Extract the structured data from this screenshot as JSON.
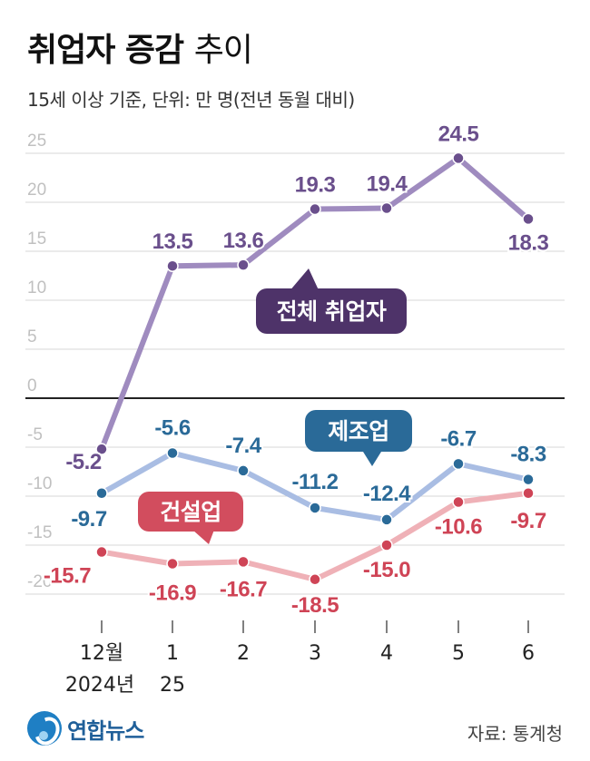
{
  "header": {
    "title_bold": "취업자 증감",
    "title_light": "추이",
    "subtitle": "15세 이상 기준, 단위: 만 명(전년 동월 대비)"
  },
  "footer": {
    "logo_text": "연합뉴스",
    "source": "자료: 통계청"
  },
  "colors": {
    "total": "#6a4f8c",
    "total_line": "#9f8bbf",
    "manufacturing": "#2a6a98",
    "manufacturing_line": "#a9bde3",
    "construction": "#cf4456",
    "construction_line": "#efb1b7",
    "total_badge": "#4e3369",
    "manufacturing_badge": "#2a6a98",
    "construction_badge": "#d24d5e",
    "grid": "#d7d7d7",
    "tick": "#c0c0c0"
  },
  "chart_data": {
    "type": "line",
    "categories": [
      "12월",
      "1",
      "2",
      "3",
      "4",
      "5",
      "6"
    ],
    "category_sublabels": [
      "2024년",
      "25",
      "",
      "",
      "",
      "",
      ""
    ],
    "ylim": [
      -25,
      25
    ],
    "yticks": [
      25,
      20,
      15,
      10,
      5,
      0,
      -5,
      -10,
      -15,
      -20
    ],
    "series": [
      {
        "name": "전체 취업자",
        "key": "total",
        "values": [
          -5.2,
          13.5,
          13.6,
          19.3,
          19.4,
          24.5,
          18.3
        ],
        "labels": [
          "-5.2",
          "13.5",
          "13.6",
          "19.3",
          "19.4",
          "24.5",
          "18.3"
        ]
      },
      {
        "name": "제조업",
        "key": "manufacturing",
        "values": [
          -9.7,
          -5.6,
          -7.4,
          -11.2,
          -12.4,
          -6.7,
          -8.3
        ],
        "labels": [
          "-9.7",
          "-5.6",
          "-7.4",
          "-11.2",
          "-12.4",
          "-6.7",
          "-8.3"
        ]
      },
      {
        "name": "건설업",
        "key": "construction",
        "values": [
          -15.7,
          -16.9,
          -16.7,
          -18.5,
          -15.0,
          -10.6,
          -9.7
        ],
        "labels": [
          "-15.7",
          "-16.9",
          "-16.7",
          "-18.5",
          "-15.0",
          "-10.6",
          "-9.7"
        ]
      }
    ]
  }
}
